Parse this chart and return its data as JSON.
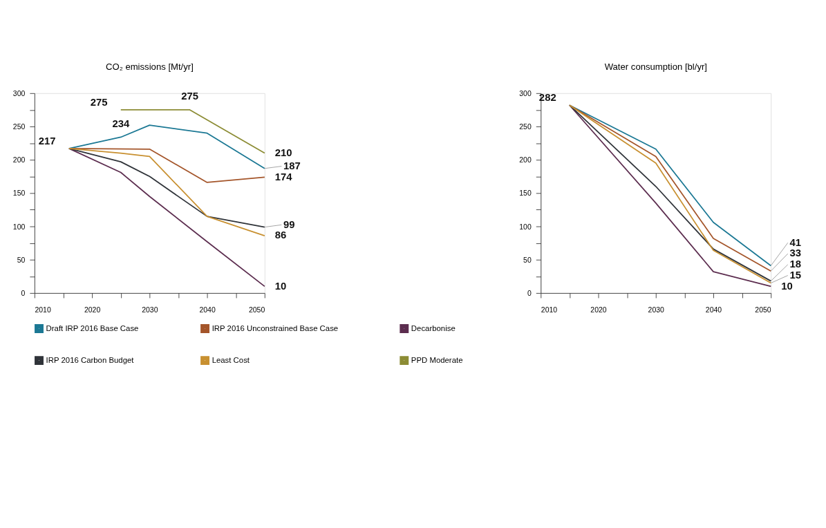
{
  "chart_data": [
    {
      "type": "line",
      "title": "CO₂ emissions [Mt/yr]",
      "xlim": [
        2010,
        2050
      ],
      "ylim": [
        0,
        300
      ],
      "xticks": [
        2010,
        {
          "value": 2015,
          "label": null
        },
        2020,
        {
          "value": 2025,
          "label": null
        },
        2030,
        {
          "value": 2035,
          "label": null
        },
        2040,
        {
          "value": 2045,
          "label": null
        },
        2050
      ],
      "yticks": [
        0,
        {
          "value": 25,
          "label": null
        },
        50,
        {
          "value": 75,
          "label": null
        },
        100,
        {
          "value": 125,
          "label": null
        },
        150,
        {
          "value": 175,
          "label": null
        },
        200,
        {
          "value": 225,
          "label": null
        },
        250,
        {
          "value": 275,
          "label": null
        },
        300
      ],
      "grid": false,
      "legend": "bottom",
      "marker": "none",
      "line_style": "solid",
      "series": [
        {
          "name": "Draft IRP 2016 Base Case",
          "color": "#1b7894",
          "x": [
            2016,
            2025,
            2030,
            2040,
            2050
          ],
          "values": [
            217,
            234,
            252,
            240,
            187
          ],
          "value_labels": [
            "217",
            "234",
            null,
            null,
            "187"
          ]
        },
        {
          "name": "IRP 2016 Unconstrained Base Case",
          "color": "#a4552a",
          "x": [
            2016,
            2030,
            2040,
            2050
          ],
          "values": [
            217,
            216,
            166,
            174
          ],
          "value_labels": [
            null,
            null,
            null,
            "174"
          ]
        },
        {
          "name": "Decarbonise",
          "color": "#5c2d4f",
          "x": [
            2016,
            2025,
            2030,
            2040,
            2050
          ],
          "values": [
            217,
            181,
            145,
            77,
            10
          ],
          "value_labels": [
            null,
            null,
            null,
            null,
            "10"
          ]
        },
        {
          "name": "IRP 2016 Carbon Budget",
          "color": "#2f3339",
          "x": [
            2016,
            2025,
            2030,
            2040,
            2050
          ],
          "values": [
            217,
            197,
            175,
            115,
            99
          ],
          "value_labels": [
            null,
            null,
            null,
            null,
            "99"
          ]
        },
        {
          "name": "Least Cost",
          "color": "#c89030",
          "x": [
            2016,
            2025,
            2030,
            2040,
            2050
          ],
          "values": [
            217,
            210,
            205,
            115,
            86
          ],
          "value_labels": [
            null,
            null,
            null,
            null,
            "86"
          ]
        },
        {
          "name": "PPD Moderate",
          "color": "#8c8c34",
          "x": [
            2025,
            2037,
            2050
          ],
          "values": [
            275,
            275,
            210
          ],
          "value_labels": [
            "275",
            "275",
            "210"
          ]
        }
      ]
    },
    {
      "type": "line",
      "title": "Water consumption [bl/yr]",
      "xlim": [
        2010,
        2050
      ],
      "ylim": [
        0,
        300
      ],
      "xticks": [
        2010,
        {
          "value": 2015,
          "label": null
        },
        2020,
        {
          "value": 2025,
          "label": null
        },
        2030,
        {
          "value": 2035,
          "label": null
        },
        2040,
        {
          "value": 2045,
          "label": null
        },
        2050
      ],
      "yticks": [
        0,
        {
          "value": 25,
          "label": null
        },
        50,
        {
          "value": 75,
          "label": null
        },
        100,
        {
          "value": 125,
          "label": null
        },
        150,
        {
          "value": 175,
          "label": null
        },
        200,
        {
          "value": 225,
          "label": null
        },
        250,
        {
          "value": 275,
          "label": null
        },
        300
      ],
      "grid": false,
      "marker": "none",
      "line_style": "solid",
      "series": [
        {
          "color": "#1b7894",
          "x": [
            2015,
            2030,
            2040,
            2050
          ],
          "values": [
            282,
            216,
            106,
            41
          ],
          "value_labels": [
            "282",
            null,
            null,
            "41"
          ]
        },
        {
          "color": "#a4552a",
          "x": [
            2015,
            2030,
            2040,
            2050
          ],
          "values": [
            282,
            205,
            82,
            33
          ],
          "value_labels": [
            null,
            null,
            null,
            "33"
          ]
        },
        {
          "color": "#5c2d4f",
          "x": [
            2015,
            2030,
            2040,
            2050
          ],
          "values": [
            282,
            135,
            32,
            10
          ],
          "value_labels": [
            null,
            null,
            null,
            "10"
          ]
        },
        {
          "color": "#2f3339",
          "x": [
            2015,
            2030,
            2040,
            2050
          ],
          "values": [
            282,
            160,
            66,
            18
          ],
          "value_labels": [
            null,
            null,
            null,
            "18"
          ]
        },
        {
          "color": "#c89030",
          "x": [
            2015,
            2030,
            2040,
            2050
          ],
          "values": [
            282,
            195,
            64,
            15
          ],
          "value_labels": [
            null,
            null,
            null,
            "15"
          ]
        }
      ]
    }
  ]
}
